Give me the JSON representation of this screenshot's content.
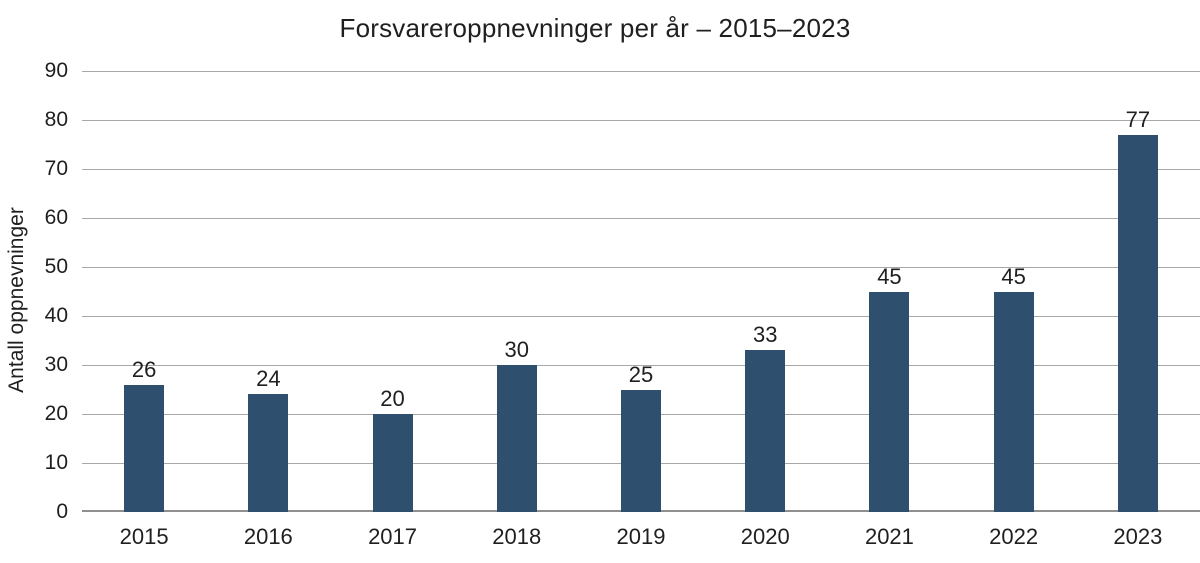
{
  "chart_data": {
    "type": "bar",
    "title": "Forsvareroppnevninger per år – 2015–2023",
    "ylabel": "Antall oppnevninger",
    "xlabel": "",
    "categories": [
      "2015",
      "2016",
      "2017",
      "2018",
      "2019",
      "2020",
      "2021",
      "2022",
      "2023"
    ],
    "values": [
      26,
      24,
      20,
      30,
      25,
      33,
      45,
      45,
      77
    ],
    "ylim": [
      0,
      90
    ],
    "ytick_step": 10,
    "yticks": [
      0,
      10,
      20,
      30,
      40,
      50,
      60,
      70,
      80,
      90
    ],
    "grid": "horizontal-gridlines-on",
    "legend": "none",
    "bar_labels_shown": true,
    "colors": {
      "bar": "#2f4f6e",
      "gridline": "#a8a8a8",
      "axis_line": "#8f8f8f",
      "text": "#1f1f1f",
      "background": "#ffffff"
    }
  }
}
